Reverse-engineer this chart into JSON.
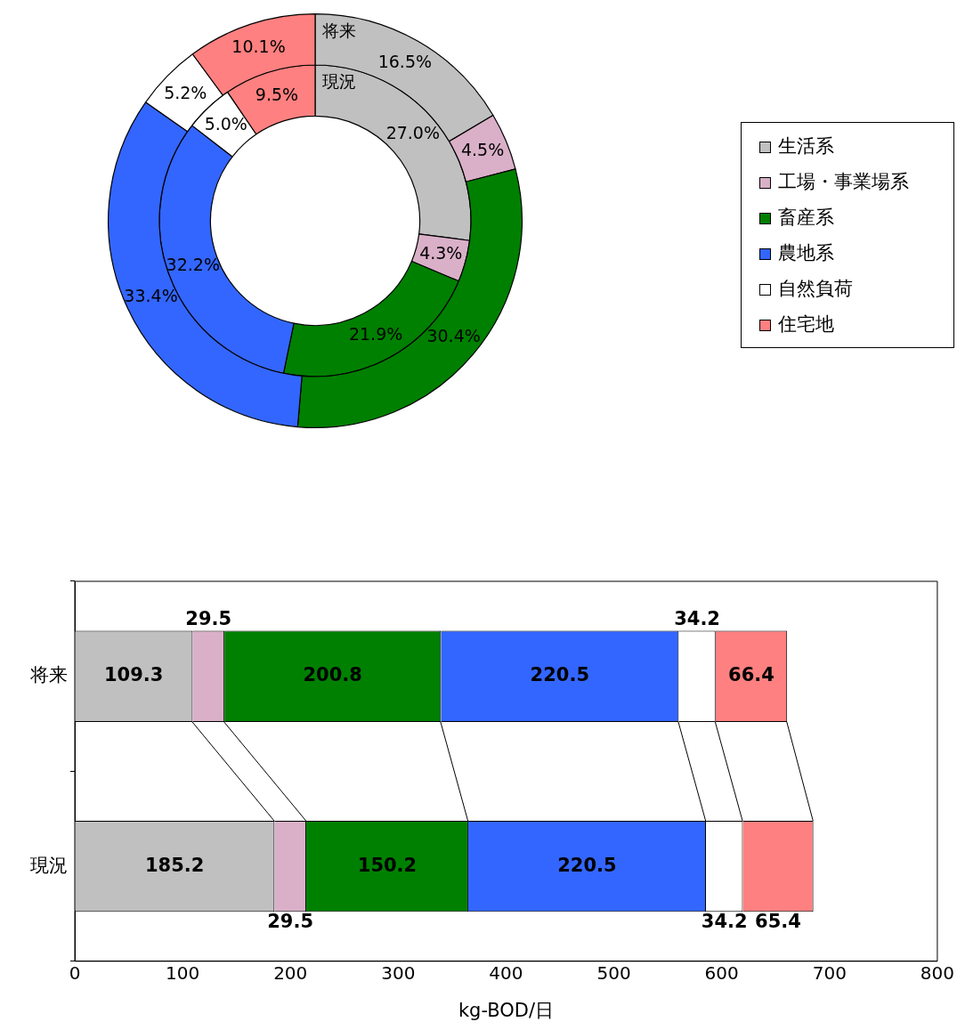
{
  "chart_data": [
    {
      "type": "donut",
      "categories": [
        "生活系",
        "工場・事業場系",
        "畜産系",
        "農地系",
        "自然負荷",
        "住宅地"
      ],
      "colors": [
        "#c0c0c0",
        "#d9b0c8",
        "#008000",
        "#3366ff",
        "#ffffff",
        "#ff8080"
      ],
      "legend": "right",
      "series": [
        {
          "name": "将来",
          "values": [
            16.5,
            4.5,
            30.4,
            33.4,
            5.2,
            10.1
          ],
          "value_labels": [
            "16.5%",
            "4.5%",
            "30.4%",
            "33.4%",
            "5.2%",
            "10.1%"
          ]
        },
        {
          "name": "現況",
          "values": [
            27.0,
            4.3,
            21.9,
            32.2,
            5.0,
            9.5
          ],
          "value_labels": [
            "27.0%",
            "4.3%",
            "21.9%",
            "32.2%",
            "5.0%",
            "9.5%"
          ]
        }
      ]
    },
    {
      "type": "bar",
      "orientation": "horizontal",
      "stacked": true,
      "categories": [
        "将来",
        "現況"
      ],
      "xlabel": "kg-BOD/日",
      "xlim": [
        0,
        800
      ],
      "xticks": [
        0,
        100,
        200,
        300,
        400,
        500,
        600,
        700,
        800
      ],
      "data_labels": true,
      "series": [
        {
          "color": "#c0c0c0",
          "values": [
            109.3,
            185.2
          ]
        },
        {
          "color": "#d9b0c8",
          "values": [
            29.5,
            29.5
          ]
        },
        {
          "color": "#008000",
          "values": [
            200.8,
            150.2
          ]
        },
        {
          "color": "#3366ff",
          "values": [
            220.5,
            220.5
          ]
        },
        {
          "color": "#ffffff",
          "values": [
            34.2,
            34.2
          ]
        },
        {
          "color": "#ff8080",
          "values": [
            66.4,
            65.4
          ]
        }
      ]
    }
  ]
}
